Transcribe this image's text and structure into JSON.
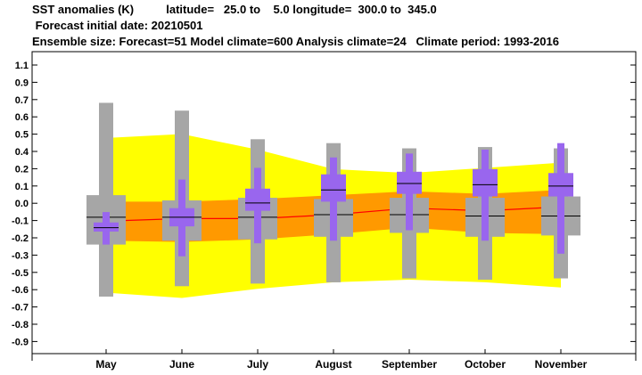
{
  "header": {
    "line1": "SST anomalies (K)          latitude=   25.0 to    5.0 longitude=  300.0 to  345.0",
    "line2": " Forecast initial date: 20210501",
    "line3": "Ensemble size: Forecast=51 Model climate=600 Analysis climate=24   Climate period: 1993-2016"
  },
  "chart_data": {
    "type": "box",
    "title": "SST anomalies (K)",
    "categories": [
      "May",
      "June",
      "July",
      "August",
      "September",
      "October",
      "November"
    ],
    "ylim": [
      -0.95,
      1.15
    ],
    "yticks": [
      "1.1",
      "0.9",
      "0.7",
      "0.6",
      "0.5",
      "0.4",
      "0.2",
      "0.1",
      "0.0",
      "-0.1",
      "-0.2",
      "-0.3",
      "-0.5",
      "-0.6",
      "-0.7",
      "-0.8",
      "-0.9"
    ],
    "grid": false,
    "colors": {
      "yellow_band": "#ffff00",
      "orange_band": "#ff9900",
      "red_line": "#ff0000",
      "model_climate_box": "#a6a6a6",
      "forecast_box": "#9966ee",
      "median": "#000000"
    },
    "analysis_climate_band": {
      "outer": [
        [
          -0.6,
          0.59
        ],
        [
          -0.64,
          0.62
        ],
        [
          -0.57,
          0.5
        ],
        [
          -0.52,
          0.35
        ],
        [
          -0.5,
          0.32
        ],
        [
          -0.52,
          0.36
        ],
        [
          -0.56,
          0.4
        ]
      ],
      "inner": [
        [
          -0.2,
          0.1
        ],
        [
          -0.21,
          0.1
        ],
        [
          -0.19,
          0.12
        ],
        [
          -0.15,
          0.15
        ],
        [
          -0.1,
          0.18
        ],
        [
          -0.14,
          0.16
        ],
        [
          -0.15,
          0.19
        ]
      ],
      "mean": [
        -0.05,
        -0.03,
        -0.03,
        0.0,
        0.05,
        0.03,
        0.06
      ]
    },
    "model_climate": [
      {
        "min": -0.63,
        "p25": -0.23,
        "median": -0.02,
        "p75": 0.15,
        "max": 0.86
      },
      {
        "min": -0.55,
        "p25": -0.2,
        "median": -0.02,
        "p75": 0.11,
        "max": 0.8
      },
      {
        "min": -0.53,
        "p25": -0.19,
        "median": -0.02,
        "p75": 0.13,
        "max": 0.58
      },
      {
        "min": -0.52,
        "p25": -0.17,
        "median": 0.0,
        "p75": 0.12,
        "max": 0.55
      },
      {
        "min": -0.49,
        "p25": -0.14,
        "median": 0.0,
        "p75": 0.13,
        "max": 0.51
      },
      {
        "min": -0.5,
        "p25": -0.17,
        "median": -0.01,
        "p75": 0.13,
        "max": 0.52
      },
      {
        "min": -0.49,
        "p25": -0.16,
        "median": -0.01,
        "p75": 0.14,
        "max": 0.51
      }
    ],
    "forecast": [
      {
        "min": -0.23,
        "p25": -0.13,
        "median": -0.1,
        "p75": -0.06,
        "max": 0.02
      },
      {
        "min": -0.32,
        "p25": -0.09,
        "median": -0.02,
        "p75": 0.05,
        "max": 0.27
      },
      {
        "min": -0.22,
        "p25": 0.03,
        "median": 0.09,
        "p75": 0.2,
        "max": 0.36
      },
      {
        "min": -0.2,
        "p25": 0.1,
        "median": 0.19,
        "p75": 0.31,
        "max": 0.44
      },
      {
        "min": -0.12,
        "p25": 0.16,
        "median": 0.24,
        "p75": 0.33,
        "max": 0.47
      },
      {
        "min": -0.2,
        "p25": 0.14,
        "median": 0.23,
        "p75": 0.35,
        "max": 0.5
      },
      {
        "min": -0.3,
        "p25": 0.14,
        "median": 0.22,
        "p75": 0.32,
        "max": 0.55
      }
    ]
  }
}
